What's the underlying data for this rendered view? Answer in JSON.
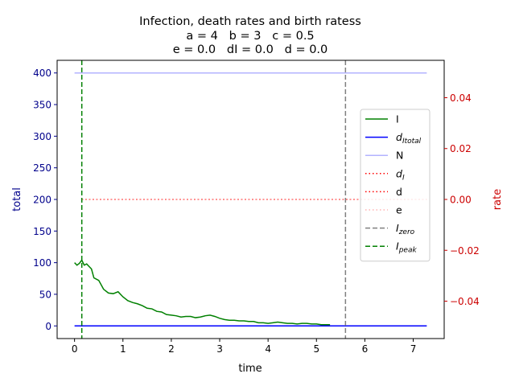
{
  "chart_data": {
    "type": "line",
    "title_lines": [
      "Infection, death rates and birth ratess",
      "a = 4   b = 3   c = 0.5",
      "e = 0.0   dI = 0.0   d = 0.0"
    ],
    "xlabel": "time",
    "ylabel_left": "total",
    "ylabel_right": "rate",
    "xlim": [
      -0.36,
      7.64
    ],
    "ylim_left": [
      -20,
      420
    ],
    "ylim_right": [
      -0.0547,
      0.0547
    ],
    "x_ticks": [
      0,
      1,
      2,
      3,
      4,
      5,
      6,
      7
    ],
    "y_ticks_left": [
      0,
      50,
      100,
      150,
      200,
      250,
      300,
      350,
      400
    ],
    "y_ticks_right": [
      -0.04,
      -0.02,
      0.0,
      0.02,
      0.04
    ],
    "y_tick_labels_right": [
      "−0.04",
      "−0.02",
      "0.00",
      "0.02",
      "0.04"
    ],
    "colors": {
      "I": "#008000",
      "dItotal": "#0000ff",
      "N": "#b3b3ff",
      "dI": "#ff0000",
      "d": "#ff0000",
      "e": "#ffb3b3",
      "Izero": "#808080",
      "Ipeak": "#008000",
      "left_axis": "#00008b",
      "right_axis": "#cc0000"
    },
    "series": [
      {
        "key": "I",
        "axis": "left",
        "x": [
          0,
          0.05,
          0.1,
          0.15,
          0.2,
          0.25,
          0.3,
          0.35,
          0.4,
          0.5,
          0.6,
          0.7,
          0.8,
          0.9,
          1.0,
          1.1,
          1.2,
          1.3,
          1.4,
          1.5,
          1.6,
          1.7,
          1.8,
          1.9,
          2.0,
          2.1,
          2.2,
          2.3,
          2.4,
          2.5,
          2.6,
          2.7,
          2.8,
          2.9,
          3.0,
          3.1,
          3.2,
          3.3,
          3.4,
          3.5,
          3.6,
          3.7,
          3.8,
          3.9,
          4.0,
          4.1,
          4.2,
          4.3,
          4.4,
          4.5,
          4.6,
          4.7,
          4.8,
          4.9,
          5.0,
          5.1,
          5.2,
          5.28
        ],
        "values": [
          100,
          96,
          99,
          104,
          96,
          98,
          94,
          90,
          76,
          72,
          58,
          52,
          51,
          54,
          46,
          40,
          37,
          35,
          32,
          28,
          27,
          23,
          22,
          18,
          17,
          16,
          14,
          15,
          15,
          13,
          14,
          16,
          17,
          15,
          12,
          10,
          9,
          9,
          8,
          8,
          7,
          7,
          5,
          5,
          4,
          5,
          6,
          5,
          4,
          4,
          3,
          4,
          4,
          3,
          3,
          2,
          2,
          2
        ]
      },
      {
        "key": "dItotal",
        "axis": "left",
        "x": [
          0,
          7.28
        ],
        "values": [
          0,
          0
        ]
      },
      {
        "key": "N",
        "axis": "left",
        "x": [
          0,
          7.28
        ],
        "values": [
          400,
          400
        ]
      },
      {
        "key": "dI",
        "axis": "right",
        "x": [
          0.15,
          7.28
        ],
        "values": [
          0,
          0
        ]
      },
      {
        "key": "d",
        "axis": "right",
        "x": [
          0.15,
          7.28
        ],
        "values": [
          0,
          0
        ]
      },
      {
        "key": "e",
        "axis": "right",
        "x": [
          0.15,
          7.28
        ],
        "values": [
          0,
          0
        ]
      }
    ],
    "vlines": [
      {
        "key": "Izero",
        "x": 5.6
      },
      {
        "key": "Ipeak",
        "x": 0.15
      }
    ],
    "legend": {
      "placement": "center-right",
      "entries": [
        {
          "key": "I",
          "label": "I",
          "style": "solid"
        },
        {
          "key": "dItotal",
          "label": "d",
          "sub": "Itotal",
          "style": "solid"
        },
        {
          "key": "N",
          "label": "N",
          "style": "solid"
        },
        {
          "key": "dI",
          "label": "d",
          "sub": "I",
          "style": "dotted"
        },
        {
          "key": "d",
          "label": "d",
          "style": "dotted"
        },
        {
          "key": "e",
          "label": "e",
          "style": "dotted"
        },
        {
          "key": "Izero",
          "label": "I",
          "sub": "zero",
          "style": "dashed"
        },
        {
          "key": "Ipeak",
          "label": "I",
          "sub": "peak",
          "style": "dashed"
        }
      ]
    }
  }
}
